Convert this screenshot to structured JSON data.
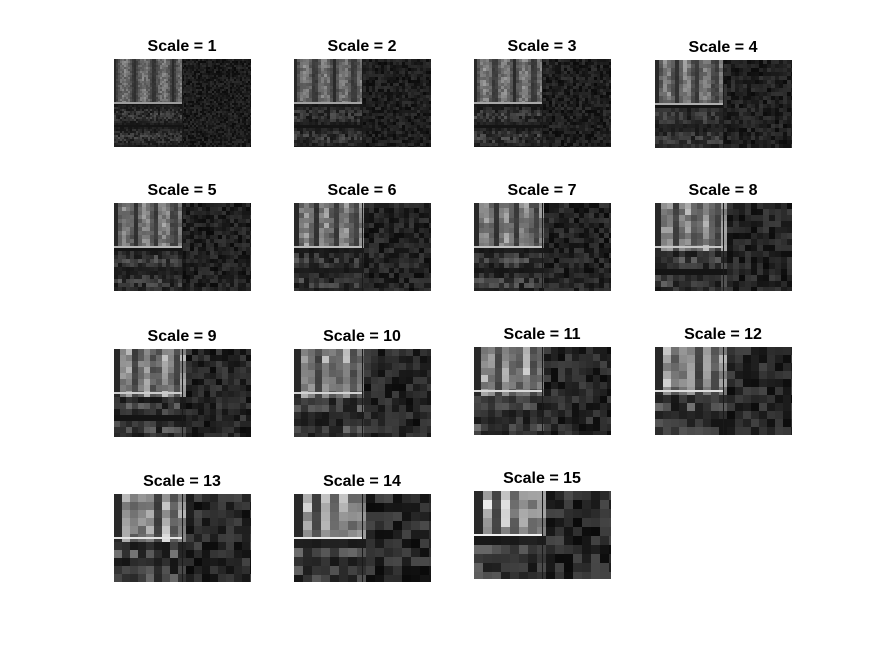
{
  "figure": {
    "background": "#ffffff",
    "image_colormap": "gray",
    "panels": [
      {
        "title": "Scale = 1",
        "scale": 1
      },
      {
        "title": "Scale = 2",
        "scale": 2
      },
      {
        "title": "Scale = 3",
        "scale": 3
      },
      {
        "title": "Scale = 4",
        "scale": 4
      },
      {
        "title": "Scale = 5",
        "scale": 5
      },
      {
        "title": "Scale = 6",
        "scale": 6
      },
      {
        "title": "Scale = 7",
        "scale": 7
      },
      {
        "title": "Scale = 8",
        "scale": 8
      },
      {
        "title": "Scale = 9",
        "scale": 9
      },
      {
        "title": "Scale = 10",
        "scale": 10
      },
      {
        "title": "Scale = 11",
        "scale": 11
      },
      {
        "title": "Scale = 12",
        "scale": 12
      },
      {
        "title": "Scale = 13",
        "scale": 13
      },
      {
        "title": "Scale = 14",
        "scale": 14
      },
      {
        "title": "Scale = 15",
        "scale": 15
      }
    ]
  }
}
